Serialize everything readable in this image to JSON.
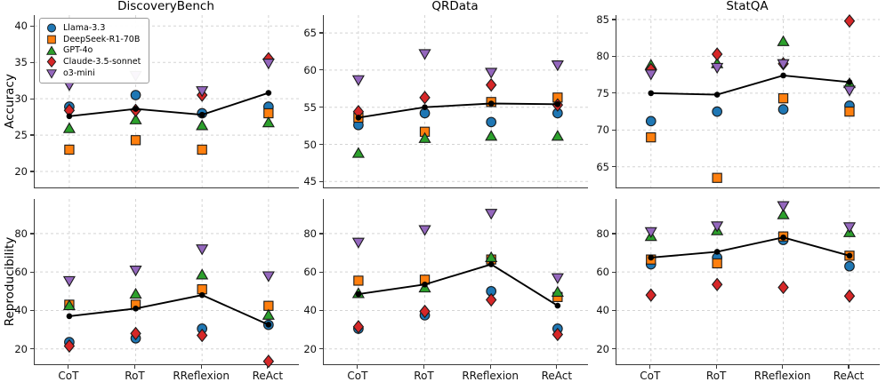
{
  "figure": {
    "ylabel_top": "Accuracy",
    "ylabel_bottom": "Reproducibility",
    "x_categories": [
      "CoT",
      "RoT",
      "RReflexion",
      "ReAct"
    ],
    "grid_color": "#d4d4d4",
    "mean_line_color": "#000000",
    "legend": {
      "position": "upper-left",
      "entries": [
        {
          "label": "Llama-3.3",
          "marker": "circle",
          "color": "#1f77b4"
        },
        {
          "label": "DeepSeek-R1-70B",
          "marker": "square",
          "color": "#ff7f0e"
        },
        {
          "label": "GPT-4o",
          "marker": "triangle-up",
          "color": "#2ca02c"
        },
        {
          "label": "Claude-3.5-sonnet",
          "marker": "diamond",
          "color": "#d62728"
        },
        {
          "label": "o3-mini",
          "marker": "triangle-down",
          "color": "#9467bd"
        }
      ]
    }
  },
  "chart_data": [
    {
      "type": "scatter",
      "title": "DiscoveryBench",
      "ylabel": "Accuracy",
      "categories": [
        "CoT",
        "RoT",
        "RReflexion",
        "ReAct"
      ],
      "yticks": [
        20,
        25,
        30,
        35,
        40
      ],
      "ylim": [
        17.8,
        41.5
      ],
      "grid": true,
      "series": [
        {
          "name": "Llama-3.3",
          "values": [
            28.9,
            30.5,
            28.0,
            28.9
          ]
        },
        {
          "name": "DeepSeek-R1-70B",
          "values": [
            23.0,
            24.3,
            23.0,
            28.0
          ]
        },
        {
          "name": "GPT-4o",
          "values": [
            25.9,
            27.1,
            26.3,
            26.7
          ]
        },
        {
          "name": "Claude-3.5-sonnet",
          "values": [
            28.4,
            28.4,
            30.5,
            35.5
          ]
        },
        {
          "name": "o3-mini",
          "values": [
            31.9,
            33.2,
            31.1,
            34.9
          ]
        }
      ],
      "mean_line": {
        "name": "mean",
        "values": [
          27.6,
          28.6,
          27.8,
          30.8
        ]
      }
    },
    {
      "type": "scatter",
      "title": "QRData",
      "ylabel": "Accuracy",
      "categories": [
        "CoT",
        "RoT",
        "RReflexion",
        "ReAct"
      ],
      "yticks": [
        45,
        50,
        55,
        60,
        65
      ],
      "ylim": [
        44.2,
        67.4
      ],
      "grid": true,
      "series": [
        {
          "name": "Llama-3.3",
          "values": [
            52.6,
            54.2,
            53.0,
            54.2
          ]
        },
        {
          "name": "DeepSeek-R1-70B",
          "values": [
            53.6,
            51.7,
            55.7,
            56.3
          ]
        },
        {
          "name": "GPT-4o",
          "values": [
            48.8,
            50.8,
            51.1,
            51.1
          ]
        },
        {
          "name": "Claude-3.5-sonnet",
          "values": [
            54.4,
            56.3,
            58.0,
            55.3
          ]
        },
        {
          "name": "o3-mini",
          "values": [
            58.7,
            62.2,
            59.7,
            60.7
          ]
        }
      ],
      "mean_line": {
        "name": "mean",
        "values": [
          53.6,
          55.0,
          55.5,
          55.4
        ]
      }
    },
    {
      "type": "scatter",
      "title": "StatQA",
      "ylabel": "Accuracy",
      "categories": [
        "CoT",
        "RoT",
        "RReflexion",
        "ReAct"
      ],
      "yticks": [
        65,
        70,
        75,
        80,
        85
      ],
      "ylim": [
        62.2,
        85.6
      ],
      "grid": true,
      "series": [
        {
          "name": "Llama-3.3",
          "values": [
            71.2,
            72.5,
            72.8,
            73.3
          ]
        },
        {
          "name": "DeepSeek-R1-70B",
          "values": [
            69.0,
            63.5,
            74.3,
            72.5
          ]
        },
        {
          "name": "GPT-4o",
          "values": [
            78.8,
            79.0,
            82.0,
            76.3
          ]
        },
        {
          "name": "Claude-3.5-sonnet",
          "values": [
            78.2,
            80.3,
            79.0,
            84.8
          ]
        },
        {
          "name": "o3-mini",
          "values": [
            77.6,
            78.5,
            79.0,
            75.4
          ]
        }
      ],
      "mean_line": {
        "name": "mean",
        "values": [
          75.0,
          74.8,
          77.4,
          76.5
        ]
      }
    },
    {
      "type": "scatter",
      "title": "DiscoveryBench",
      "ylabel": "Reproducibility",
      "categories": [
        "CoT",
        "RoT",
        "RReflexion",
        "ReAct"
      ],
      "yticks": [
        20,
        40,
        60,
        80
      ],
      "ylim": [
        12,
        98
      ],
      "grid": true,
      "series": [
        {
          "name": "Llama-3.3",
          "values": [
            23.5,
            25.5,
            30.5,
            32.5
          ]
        },
        {
          "name": "DeepSeek-R1-70B",
          "values": [
            43.0,
            43.0,
            51.0,
            42.4
          ]
        },
        {
          "name": "GPT-4o",
          "values": [
            42.5,
            48.5,
            58.5,
            37.5
          ]
        },
        {
          "name": "Claude-3.5-sonnet",
          "values": [
            21.5,
            28.0,
            27.0,
            13.5
          ]
        },
        {
          "name": "o3-mini",
          "values": [
            55.5,
            61.0,
            72.0,
            58.0
          ]
        }
      ],
      "mean_line": {
        "name": "mean",
        "values": [
          37.0,
          41.0,
          48.0,
          32.6
        ]
      }
    },
    {
      "type": "scatter",
      "title": "QRData",
      "ylabel": "Reproducibility",
      "categories": [
        "CoT",
        "RoT",
        "RReflexion",
        "ReAct"
      ],
      "yticks": [
        20,
        40,
        60,
        80
      ],
      "ylim": [
        12,
        98
      ],
      "grid": true,
      "series": [
        {
          "name": "Llama-3.3",
          "values": [
            30.5,
            37.5,
            50.0,
            30.5
          ]
        },
        {
          "name": "DeepSeek-R1-70B",
          "values": [
            55.5,
            56.0,
            66.5,
            47.0
          ]
        },
        {
          "name": "GPT-4o",
          "values": [
            48.8,
            51.7,
            67.5,
            49.5
          ]
        },
        {
          "name": "Claude-3.5-sonnet",
          "values": [
            31.5,
            39.5,
            45.5,
            27.5
          ]
        },
        {
          "name": "o3-mini",
          "values": [
            75.5,
            82.0,
            90.5,
            57.0
          ]
        }
      ],
      "mean_line": {
        "name": "mean",
        "values": [
          48.5,
          53.5,
          64.0,
          42.5
        ]
      }
    },
    {
      "type": "scatter",
      "title": "StatQA",
      "ylabel": "Reproducibility",
      "categories": [
        "CoT",
        "RoT",
        "RReflexion",
        "ReAct"
      ],
      "yticks": [
        20,
        40,
        60,
        80
      ],
      "ylim": [
        12,
        98
      ],
      "grid": true,
      "series": [
        {
          "name": "Llama-3.3",
          "values": [
            64.0,
            67.5,
            76.7,
            63.0
          ]
        },
        {
          "name": "DeepSeek-R1-70B",
          "values": [
            66.5,
            64.5,
            78.5,
            68.5
          ]
        },
        {
          "name": "GPT-4o",
          "values": [
            78.5,
            81.5,
            89.8,
            80.5
          ]
        },
        {
          "name": "Claude-3.5-sonnet",
          "values": [
            48.0,
            53.5,
            52.0,
            47.5
          ]
        },
        {
          "name": "o3-mini",
          "values": [
            81.0,
            84.0,
            94.5,
            83.5
          ]
        }
      ],
      "mean_line": {
        "name": "mean",
        "values": [
          67.5,
          70.5,
          78.0,
          68.5
        ]
      }
    }
  ]
}
